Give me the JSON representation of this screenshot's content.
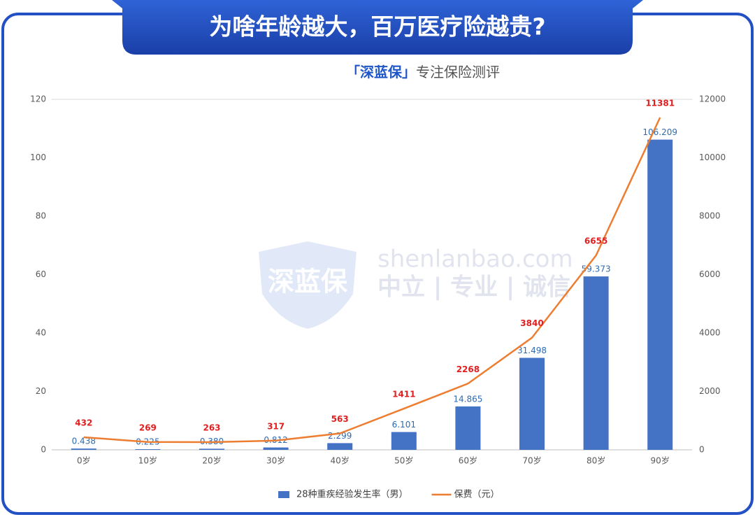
{
  "chart_data": {
    "type": "bar",
    "title": "为啥年龄越大，百万医疗险越贵?",
    "subtitle_brand": "「深蓝保」",
    "subtitle": "专注保险测评",
    "watermark": {
      "logo": "深蓝保",
      "site": "shenlanbao.com",
      "motto": "中立 | 专业 | 诚信"
    },
    "categories": [
      "0岁",
      "10岁",
      "20岁",
      "30岁",
      "40岁",
      "50岁",
      "60岁",
      "70岁",
      "80岁",
      "90岁"
    ],
    "series": [
      {
        "name": "28种重疾经验发生率（男）",
        "type": "bar",
        "color": "#4472c4",
        "values": [
          0.438,
          0.225,
          0.38,
          0.812,
          2.299,
          6.101,
          14.865,
          31.498,
          59.373,
          106.209
        ],
        "value_labels": [
          "0.438",
          "0.225",
          "0.380",
          "0.812",
          "2.299",
          "6.101",
          "14.865",
          "31.498",
          "59.373",
          "106.209"
        ]
      },
      {
        "name": "保费（元）",
        "type": "line",
        "axis": "y2",
        "color": "#ed7d31",
        "values": [
          432,
          269,
          263,
          317,
          563,
          1411,
          2268,
          3840,
          6655,
          11381
        ]
      }
    ],
    "ylim": [
      0,
      120
    ],
    "yticks": [
      0,
      20,
      40,
      60,
      80,
      100,
      120
    ],
    "y2lim": [
      0,
      12000
    ],
    "y2ticks": [
      0,
      2000,
      4000,
      6000,
      8000,
      10000,
      12000
    ],
    "grid": false
  }
}
